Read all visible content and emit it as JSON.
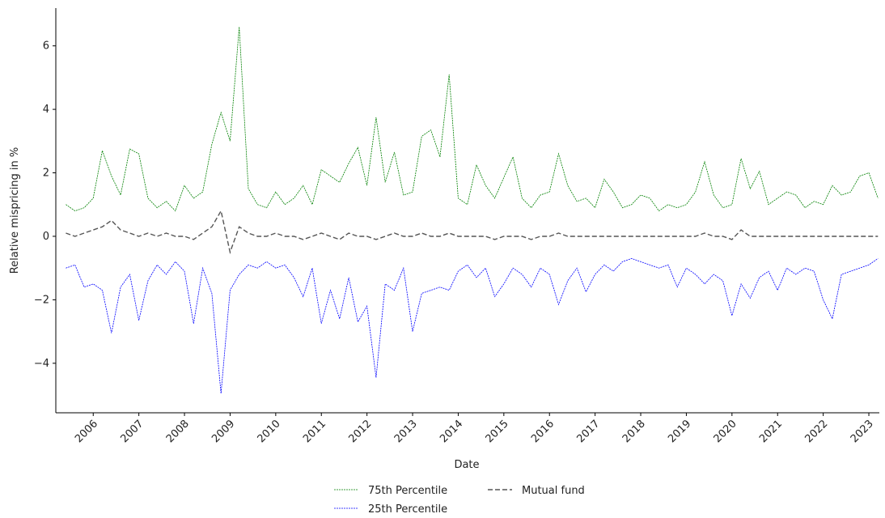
{
  "chart_data": {
    "type": "line",
    "x_label": "Date",
    "y_label": "Relative mispricing in %",
    "x": [
      2005.4,
      2005.6,
      2005.8,
      2006.0,
      2006.2,
      2006.4,
      2006.6,
      2006.8,
      2007.0,
      2007.2,
      2007.4,
      2007.6,
      2007.8,
      2008.0,
      2008.2,
      2008.4,
      2008.6,
      2008.8,
      2009.0,
      2009.2,
      2009.4,
      2009.6,
      2009.8,
      2010.0,
      2010.2,
      2010.4,
      2010.6,
      2010.8,
      2011.0,
      2011.2,
      2011.4,
      2011.6,
      2011.8,
      2012.0,
      2012.2,
      2012.4,
      2012.6,
      2012.8,
      2013.0,
      2013.2,
      2013.4,
      2013.6,
      2013.8,
      2014.0,
      2014.2,
      2014.4,
      2014.6,
      2014.8,
      2015.0,
      2015.2,
      2015.4,
      2015.6,
      2015.8,
      2016.0,
      2016.2,
      2016.4,
      2016.6,
      2016.8,
      2017.0,
      2017.2,
      2017.4,
      2017.6,
      2017.8,
      2018.0,
      2018.2,
      2018.4,
      2018.6,
      2018.8,
      2019.0,
      2019.2,
      2019.4,
      2019.6,
      2019.8,
      2020.0,
      2020.2,
      2020.4,
      2020.6,
      2020.8,
      2021.0,
      2021.2,
      2021.4,
      2021.6,
      2021.8,
      2022.0,
      2022.2,
      2022.4,
      2022.6,
      2022.8,
      2023.0,
      2023.2
    ],
    "series": [
      {
        "name": "75th Percentile",
        "color": "#008000",
        "linestyle": "dotted",
        "values": [
          1.0,
          0.8,
          0.9,
          1.2,
          2.7,
          1.9,
          1.3,
          2.75,
          2.6,
          1.2,
          0.9,
          1.1,
          0.8,
          1.6,
          1.2,
          1.4,
          2.9,
          3.9,
          3.0,
          6.6,
          1.5,
          1.0,
          0.9,
          1.4,
          1.0,
          1.2,
          1.6,
          1.0,
          2.1,
          1.9,
          1.7,
          2.3,
          2.8,
          1.6,
          3.75,
          1.7,
          2.65,
          1.3,
          1.4,
          3.15,
          3.35,
          2.5,
          5.1,
          1.2,
          1.0,
          2.25,
          1.6,
          1.2,
          1.85,
          2.5,
          1.2,
          0.9,
          1.3,
          1.4,
          2.6,
          1.6,
          1.1,
          1.2,
          0.9,
          1.8,
          1.4,
          0.9,
          1.0,
          1.3,
          1.2,
          0.8,
          1.0,
          0.9,
          1.0,
          1.4,
          2.35,
          1.3,
          0.9,
          1.0,
          2.45,
          1.5,
          2.05,
          1.0,
          1.2,
          1.4,
          1.3,
          0.9,
          1.1,
          1.0,
          1.6,
          1.3,
          1.4,
          1.9,
          2.0,
          1.2
        ]
      },
      {
        "name": "25th Percentile",
        "color": "#0000ff",
        "linestyle": "dotted",
        "values": [
          -1.0,
          -0.9,
          -1.6,
          -1.5,
          -1.7,
          -3.05,
          -1.6,
          -1.2,
          -2.65,
          -1.4,
          -0.9,
          -1.2,
          -0.8,
          -1.1,
          -2.75,
          -1.0,
          -1.8,
          -4.95,
          -1.7,
          -1.2,
          -0.9,
          -1.0,
          -0.8,
          -1.0,
          -0.9,
          -1.3,
          -1.9,
          -1.0,
          -2.75,
          -1.7,
          -2.6,
          -1.3,
          -2.7,
          -2.2,
          -4.45,
          -1.5,
          -1.7,
          -1.0,
          -3.0,
          -1.8,
          -1.7,
          -1.6,
          -1.7,
          -1.1,
          -0.9,
          -1.3,
          -1.0,
          -1.9,
          -1.5,
          -1.0,
          -1.2,
          -1.6,
          -1.0,
          -1.2,
          -2.15,
          -1.4,
          -1.0,
          -1.75,
          -1.2,
          -0.9,
          -1.1,
          -0.8,
          -0.7,
          -0.8,
          -0.9,
          -1.0,
          -0.9,
          -1.6,
          -1.0,
          -1.2,
          -1.5,
          -1.2,
          -1.4,
          -2.5,
          -1.5,
          -1.95,
          -1.3,
          -1.1,
          -1.7,
          -1.0,
          -1.2,
          -1.0,
          -1.1,
          -2.0,
          -2.6,
          -1.2,
          -1.1,
          -1.0,
          -0.9,
          -0.7
        ]
      },
      {
        "name": "Mutual fund",
        "color": "#555555",
        "linestyle": "dashed",
        "values": [
          0.1,
          0.0,
          0.1,
          0.2,
          0.3,
          0.5,
          0.2,
          0.1,
          0.0,
          0.1,
          0.0,
          0.1,
          0.0,
          0.0,
          -0.1,
          0.1,
          0.3,
          0.8,
          -0.5,
          0.3,
          0.1,
          0.0,
          0.0,
          0.1,
          0.0,
          0.0,
          -0.1,
          0.0,
          0.1,
          0.0,
          -0.1,
          0.1,
          0.0,
          0.0,
          -0.1,
          0.0,
          0.1,
          0.0,
          0.0,
          0.1,
          0.0,
          0.0,
          0.1,
          0.0,
          0.0,
          0.0,
          0.0,
          -0.1,
          0.0,
          0.0,
          0.0,
          -0.1,
          0.0,
          0.0,
          0.1,
          0.0,
          0.0,
          0.0,
          0.0,
          0.0,
          0.0,
          0.0,
          0.0,
          0.0,
          0.0,
          0.0,
          0.0,
          0.0,
          0.0,
          0.0,
          0.1,
          0.0,
          0.0,
          -0.1,
          0.2,
          0.0,
          0.0,
          0.0,
          0.0,
          0.0,
          0.0,
          0.0,
          0.0,
          0.0,
          0.0,
          0.0,
          0.0,
          0.0,
          0.0,
          0.0
        ]
      }
    ],
    "xlim": [
      2005.18,
      2023.23
    ],
    "xticks": [
      2006,
      2007,
      2008,
      2009,
      2010,
      2011,
      2012,
      2013,
      2014,
      2015,
      2016,
      2017,
      2018,
      2019,
      2020,
      2021,
      2022,
      2023
    ],
    "ylim": [
      -5.56,
      7.19
    ],
    "yticks": [
      {
        "value": -4,
        "label": "−4"
      },
      {
        "value": -2,
        "label": "−2"
      },
      0,
      2,
      4,
      6
    ],
    "legend": "lower center"
  }
}
